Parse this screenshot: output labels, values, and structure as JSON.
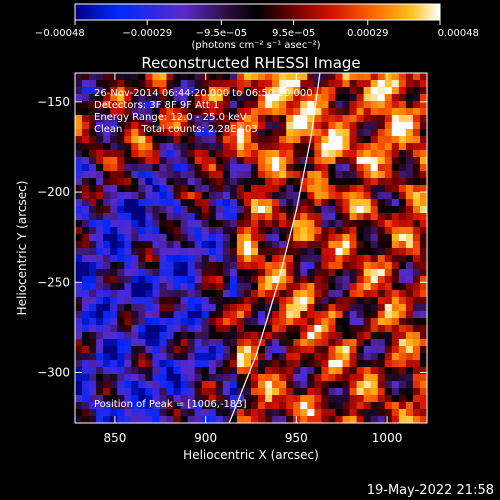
{
  "chart_data": {
    "type": "heatmap",
    "title": "Reconstructed RHESSI Image",
    "xlabel": "Heliocentric X (arcsec)",
    "ylabel": "Heliocentric Y (arcsec)",
    "xlim": [
      828,
      1022
    ],
    "ylim": [
      -328,
      -134
    ],
    "x_ticks": [
      {
        "value": 850,
        "label": "850"
      },
      {
        "value": 900,
        "label": "900"
      },
      {
        "value": 950,
        "label": "950"
      },
      {
        "value": 1000,
        "label": "1000"
      }
    ],
    "y_ticks": [
      {
        "value": -150,
        "label": "−150"
      },
      {
        "value": -200,
        "label": "−200"
      },
      {
        "value": -250,
        "label": "−250"
      },
      {
        "value": -300,
        "label": "−300"
      }
    ],
    "colorbar": {
      "range": [
        -0.00048,
        0.00048
      ],
      "ticks": [
        {
          "value": -0.00048,
          "label": "−0.00048"
        },
        {
          "value": -0.00029,
          "label": "−0.00029"
        },
        {
          "value": -9.5e-05,
          "label": "−9.5e−05"
        },
        {
          "value": 9.5e-05,
          "label": "9.5e−05"
        },
        {
          "value": 0.00029,
          "label": "0.00029"
        },
        {
          "value": 0.00048,
          "label": "0.00048"
        }
      ],
      "unit_label": "(photons cm⁻² s⁻¹ asec⁻²)"
    },
    "annotations": [
      "26-Nov-2014 06:44:20.000 to 06:50:20.000",
      "Detectors: 3F 8F 9F Att 1",
      "Energy Range: 12.0 - 25.0 keV",
      "Clean      Total counts: 2.28E+03"
    ],
    "peak_label": "Position of Peak = [1006,-183]",
    "limb_curve": [
      [
        913,
        -328
      ],
      [
        928,
        -290
      ],
      [
        940,
        -250
      ],
      [
        950,
        -210
      ],
      [
        958,
        -170
      ],
      [
        963,
        -134
      ]
    ]
  },
  "footer": {
    "timestamp": "19-May-2022 21:58"
  }
}
